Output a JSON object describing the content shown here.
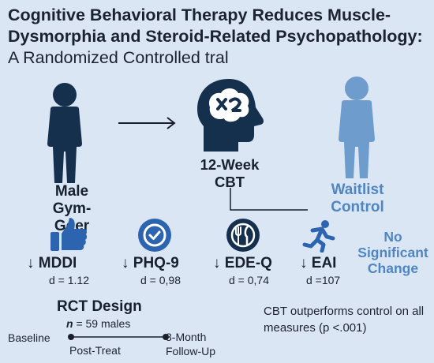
{
  "title": {
    "main": "Cognitive Behavioral Therapy Reduces Muscle-Dysmorphia and Steroid-Related Psychopathology:",
    "subtitle": " A Randomized Controlled tral"
  },
  "participant_label": "Male Gym-Goer",
  "intervention_label": "12-Week CBT",
  "control_label": "Waitlist Control",
  "outcomes": [
    {
      "label": "↓ MDDI",
      "d": "d = 1.12",
      "icon": "thumbs-up-icon"
    },
    {
      "label": "↓ PHQ-9",
      "d": "d = 0,98",
      "icon": "check-badge-icon"
    },
    {
      "label": "↓ EDE-Q",
      "d": "d = 0,74",
      "icon": "fork-knife-icon"
    },
    {
      "label": "↓ EAI",
      "d": "d =107",
      "icon": "running-person-icon"
    }
  ],
  "no_change_label": "No Significant Change",
  "rct": {
    "title": "RCT Design",
    "n_prefix": "n",
    "n_suffix": " = 59 males",
    "timeline": {
      "baseline": "Baseline",
      "post": "Post-Treat",
      "followup": "3-Month Follow-Up"
    }
  },
  "conclusion": "CBT outperforms control on all measures (p <.001)",
  "colors": {
    "background": "#dbe6f5",
    "dark_navy": "#15304d",
    "icon_blue": "#2c64b0",
    "control_blue": "#6d9ccd",
    "control_text": "#4f86c0"
  }
}
